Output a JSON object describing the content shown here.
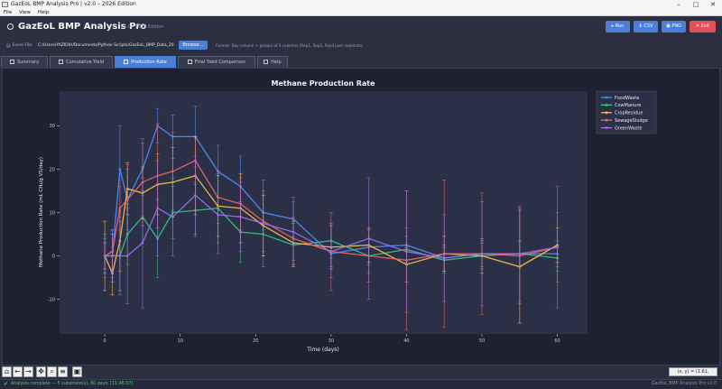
{
  "window": {
    "title": "GazEoL BMP Analysis Pro  |  v2.0 – 2026 Edition",
    "minimize": "–",
    "maximize": "□",
    "close": "✕"
  },
  "menu": [
    "File",
    "View",
    "Help"
  ],
  "header": {
    "title": "GazEoL BMP Analysis Pro",
    "version": "v2.0 · 2026 Edition",
    "buttons": {
      "run": "▸ Run",
      "csv": "⬇ CSV",
      "png": "▣ PNG",
      "exit": "✕ Exit"
    },
    "colors": {
      "run": "#4a7fd8",
      "csv": "#4a7fd8",
      "png": "#4a7fd8",
      "exit": "#e2505a"
    }
  },
  "excel": {
    "label": "Excel File:",
    "path": "C:/Users/YAZIDIH/Documents/Python Scripts/GazEoL_BMP_Data_20",
    "browse": "Browse…",
    "hint": "Format: Day column + groups of 3 columns (Rep1, Rep2, Rep3) per substrate"
  },
  "tabs": [
    {
      "label": "Summary"
    },
    {
      "label": "Cumulative Yield"
    },
    {
      "label": "Production Rate"
    },
    {
      "label": "Final Yield Comparison"
    },
    {
      "label": "Help"
    }
  ],
  "toolbar": {
    "home": "⌂",
    "back": "←",
    "forward": "→",
    "pan": "✥",
    "zoom": "⌕",
    "config": "≡",
    "save": "▣"
  },
  "coord": "(x, y) = (1.61, 32.30)",
  "status": {
    "check": "✔",
    "text": "Analysis complete — 5 substrate(s), 60 days. [11:46:07]",
    "right": "GazEoL BMP Analysis Pro v2.0"
  },
  "chart_data": {
    "type": "line",
    "title": "Methane Production Rate",
    "xlabel": "Time (days)",
    "ylabel": "Methane Production Rate  (mL CH₄/g VS/day)",
    "xlim": [
      -6,
      64
    ],
    "ylim": [
      -18,
      38
    ],
    "xticks": [
      0,
      10,
      20,
      30,
      40,
      50,
      60
    ],
    "yticks": [
      -10,
      0,
      10,
      20,
      30
    ],
    "legend_position": "top-right",
    "grid": false,
    "x": [
      0,
      1,
      2,
      3,
      5,
      7,
      9,
      12,
      15,
      18,
      21,
      25,
      30,
      35,
      40,
      45,
      50,
      55,
      60
    ],
    "series": [
      {
        "name": "FoodWaste",
        "color": "#4f8ff7",
        "values": [
          0,
          0,
          20,
          13,
          20,
          30,
          27.5,
          27.5,
          19.5,
          16,
          10,
          8.5,
          0.5,
          2,
          2.5,
          -0.5,
          0.5,
          0.5,
          0.5
        ],
        "errors": [
          3,
          6,
          10,
          7,
          6,
          4,
          5,
          7,
          6,
          7,
          4,
          4,
          3,
          4,
          4,
          3,
          3,
          3,
          3
        ]
      },
      {
        "name": "CowManure",
        "color": "#33c481",
        "values": [
          0,
          0,
          0,
          5,
          9,
          4,
          10,
          10.5,
          11,
          5.5,
          5,
          2.5,
          3.5,
          0,
          1.5,
          -1,
          0,
          0.5,
          -0.5
        ],
        "errors": [
          4,
          5,
          8,
          7,
          6,
          9,
          6,
          6,
          8,
          7,
          5,
          5,
          4,
          4,
          3,
          3,
          3,
          3,
          3
        ]
      },
      {
        "name": "CropResidue",
        "color": "#f5c242",
        "values": [
          0,
          -4,
          3.5,
          15.5,
          14.5,
          16.5,
          17,
          18.5,
          11.5,
          11,
          7,
          3,
          2,
          2.5,
          -2,
          0.5,
          0,
          -2.5,
          2.5
        ],
        "errors": [
          8,
          5,
          7,
          6,
          6,
          7,
          8,
          9,
          7,
          8,
          7,
          5,
          5,
          4,
          4,
          4,
          4,
          13,
          4
        ]
      },
      {
        "name": "SewageSludge",
        "color": "#f2616a",
        "values": [
          0,
          1,
          11,
          13,
          17,
          18.5,
          19.5,
          22,
          13.5,
          12,
          8,
          4,
          1,
          0,
          -1,
          0.5,
          0.5,
          0,
          2
        ],
        "errors": [
          3,
          4,
          5,
          8,
          10,
          12,
          9,
          5,
          6,
          6,
          7,
          5,
          9,
          6,
          16,
          17,
          14,
          11,
          8
        ]
      },
      {
        "name": "GreenWaste",
        "color": "#9b6ff2",
        "values": [
          0,
          0,
          0,
          0,
          3,
          11,
          9,
          14,
          9.5,
          9,
          7.5,
          5.5,
          1,
          4,
          1,
          -0.5,
          0.5,
          0.5,
          2
        ],
        "errors": [
          5,
          6,
          9,
          11,
          15,
          11,
          9,
          9,
          9,
          8,
          10,
          8,
          6,
          14,
          14,
          10,
          12,
          11,
          14
        ]
      }
    ]
  }
}
